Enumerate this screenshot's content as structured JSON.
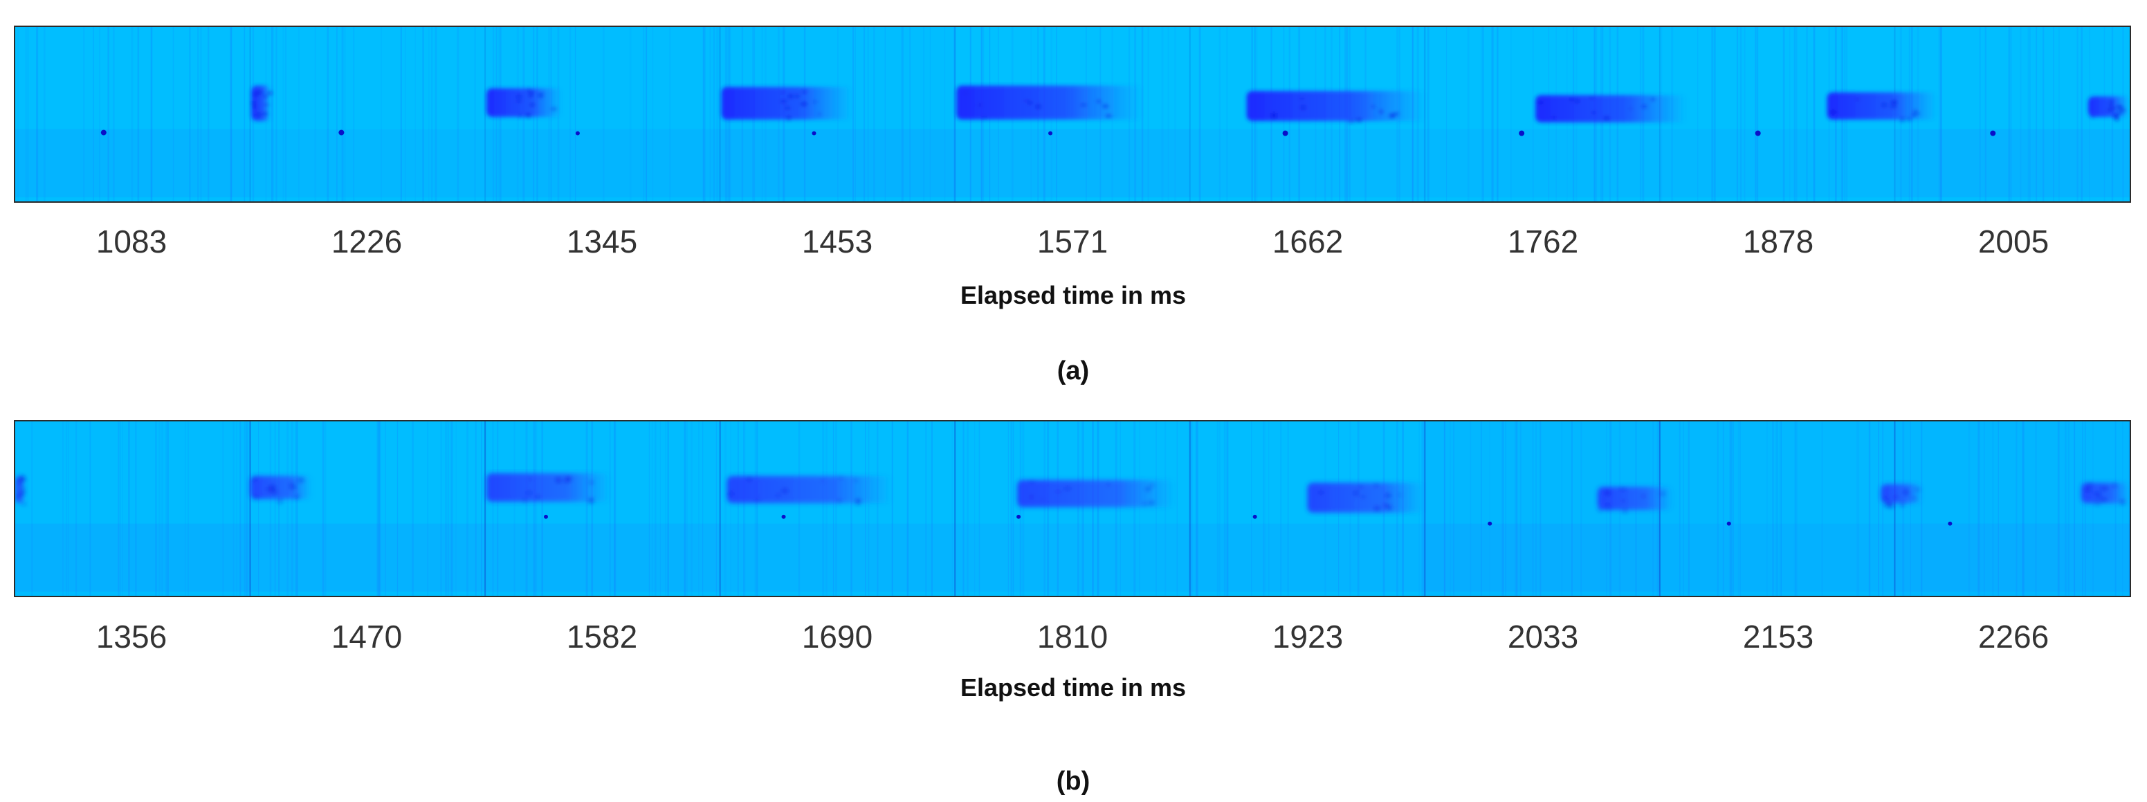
{
  "chart_data": [
    {
      "type": "heatmap",
      "panel_label": "(a)",
      "xlabel": "Elapsed time in ms",
      "ticks": [
        "1083",
        "1226",
        "1345",
        "1453",
        "1571",
        "1662",
        "1762",
        "1878",
        "2005"
      ],
      "colors": {
        "background": "#00c4ff",
        "intensity": "#1a2cff",
        "border": "#2b2b2b"
      }
    },
    {
      "type": "heatmap",
      "panel_label": "(b)",
      "xlabel": "Elapsed time in ms",
      "ticks": [
        "1356",
        "1470",
        "1582",
        "1690",
        "1810",
        "1923",
        "2033",
        "2153",
        "2266"
      ],
      "colors": {
        "background": "#00c4ff",
        "intensity": "#1a2cff",
        "border": "#2b2b2b"
      }
    }
  ]
}
